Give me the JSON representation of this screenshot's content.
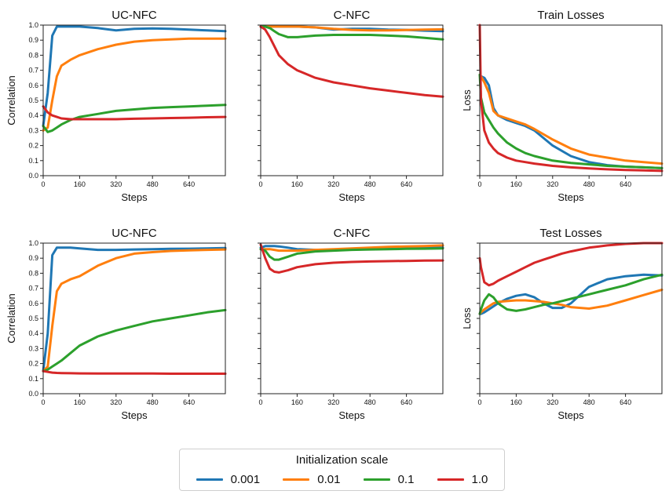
{
  "legend": {
    "title": "Initialization scale",
    "entries": [
      {
        "label": "0.001",
        "color": "#1f77b4"
      },
      {
        "label": "0.01",
        "color": "#ff7f0e"
      },
      {
        "label": "0.1",
        "color": "#2ca02c"
      },
      {
        "label": "1.0",
        "color": "#d62728"
      }
    ]
  },
  "chart_data": [
    {
      "type": "line",
      "title": "UC-NFC",
      "xlabel": "Steps",
      "ylabel": "Correlation",
      "xlim": [
        0,
        800
      ],
      "ylim": [
        0,
        1.0
      ],
      "xticks": [
        "0",
        "160",
        "320",
        "480",
        "640"
      ],
      "yticks": [
        "0.0",
        "0.1",
        "0.2",
        "0.3",
        "0.4",
        "0.5",
        "0.6",
        "0.7",
        "0.8",
        "0.9",
        "1.0"
      ],
      "x": [
        0,
        20,
        40,
        60,
        80,
        120,
        160,
        240,
        320,
        400,
        480,
        560,
        640,
        720,
        800
      ],
      "series": [
        {
          "name": "0.001",
          "values": [
            0.33,
            0.55,
            0.93,
            0.99,
            0.99,
            0.99,
            0.99,
            0.98,
            0.965,
            0.975,
            0.978,
            0.975,
            0.97,
            0.965,
            0.96
          ]
        },
        {
          "name": "0.01",
          "values": [
            0.3,
            0.32,
            0.5,
            0.66,
            0.73,
            0.77,
            0.8,
            0.84,
            0.87,
            0.89,
            0.9,
            0.905,
            0.91,
            0.91,
            0.91
          ]
        },
        {
          "name": "0.1",
          "values": [
            0.33,
            0.29,
            0.3,
            0.32,
            0.34,
            0.37,
            0.39,
            0.41,
            0.43,
            0.44,
            0.45,
            0.455,
            0.46,
            0.465,
            0.47
          ]
        },
        {
          "name": "1.0",
          "values": [
            0.46,
            0.42,
            0.4,
            0.39,
            0.38,
            0.375,
            0.375,
            0.375,
            0.375,
            0.378,
            0.38,
            0.383,
            0.385,
            0.388,
            0.39
          ]
        }
      ]
    },
    {
      "type": "line",
      "title": "C-NFC",
      "xlabel": "Steps",
      "ylabel": "",
      "xlim": [
        0,
        800
      ],
      "ylim": [
        0,
        1.0
      ],
      "xticks": [
        "0",
        "160",
        "320",
        "480",
        "640"
      ],
      "yticks": [],
      "x": [
        0,
        20,
        40,
        60,
        80,
        120,
        160,
        240,
        320,
        400,
        480,
        560,
        640,
        720,
        800
      ],
      "series": [
        {
          "name": "0.001",
          "values": [
            0.99,
            0.99,
            0.99,
            0.99,
            0.99,
            0.99,
            0.99,
            0.985,
            0.97,
            0.975,
            0.975,
            0.97,
            0.968,
            0.963,
            0.96
          ]
        },
        {
          "name": "0.01",
          "values": [
            0.99,
            0.99,
            0.99,
            0.99,
            0.99,
            0.99,
            0.99,
            0.985,
            0.975,
            0.968,
            0.965,
            0.965,
            0.967,
            0.97,
            0.972
          ]
        },
        {
          "name": "0.1",
          "values": [
            0.99,
            0.99,
            0.98,
            0.96,
            0.94,
            0.92,
            0.92,
            0.93,
            0.935,
            0.935,
            0.935,
            0.93,
            0.925,
            0.915,
            0.905
          ]
        },
        {
          "name": "1.0",
          "values": [
            0.99,
            0.97,
            0.92,
            0.86,
            0.8,
            0.74,
            0.7,
            0.65,
            0.62,
            0.6,
            0.58,
            0.565,
            0.55,
            0.535,
            0.525
          ]
        }
      ]
    },
    {
      "type": "line",
      "title": "Train Losses",
      "xlabel": "Steps",
      "ylabel": "Loss",
      "xlim": [
        0,
        800
      ],
      "ylim": [
        0,
        1.0
      ],
      "xticks": [
        "0",
        "160",
        "320",
        "480",
        "640"
      ],
      "yticks": [],
      "x": [
        0,
        5,
        20,
        40,
        60,
        80,
        120,
        160,
        200,
        240,
        320,
        400,
        480,
        560,
        640,
        720,
        800
      ],
      "series": [
        {
          "name": "0.001",
          "values": [
            0.67,
            0.66,
            0.65,
            0.6,
            0.45,
            0.4,
            0.37,
            0.35,
            0.33,
            0.3,
            0.2,
            0.13,
            0.09,
            0.07,
            0.06,
            0.055,
            0.05
          ]
        },
        {
          "name": "0.01",
          "values": [
            0.67,
            0.66,
            0.62,
            0.55,
            0.43,
            0.4,
            0.38,
            0.36,
            0.34,
            0.31,
            0.24,
            0.18,
            0.14,
            0.12,
            0.1,
            0.09,
            0.08
          ]
        },
        {
          "name": "0.1",
          "values": [
            0.67,
            0.52,
            0.42,
            0.37,
            0.32,
            0.28,
            0.22,
            0.18,
            0.15,
            0.13,
            0.1,
            0.085,
            0.075,
            0.065,
            0.06,
            0.055,
            0.05
          ]
        },
        {
          "name": "1.0",
          "values": [
            1.0,
            0.5,
            0.3,
            0.22,
            0.18,
            0.15,
            0.12,
            0.1,
            0.09,
            0.08,
            0.065,
            0.055,
            0.048,
            0.042,
            0.038,
            0.035,
            0.032
          ]
        }
      ]
    },
    {
      "type": "line",
      "title": "UC-NFC",
      "xlabel": "Steps",
      "ylabel": "Correlation",
      "xlim": [
        0,
        800
      ],
      "ylim": [
        0,
        1.0
      ],
      "xticks": [
        "0",
        "160",
        "320",
        "480",
        "640"
      ],
      "yticks": [
        "0.0",
        "0.1",
        "0.2",
        "0.3",
        "0.4",
        "0.5",
        "0.6",
        "0.7",
        "0.8",
        "0.9",
        "1.0"
      ],
      "x": [
        0,
        20,
        40,
        60,
        80,
        120,
        160,
        240,
        320,
        400,
        480,
        560,
        640,
        720,
        800
      ],
      "series": [
        {
          "name": "0.001",
          "values": [
            0.15,
            0.4,
            0.92,
            0.97,
            0.97,
            0.97,
            0.965,
            0.955,
            0.955,
            0.958,
            0.96,
            0.962,
            0.963,
            0.965,
            0.967
          ]
        },
        {
          "name": "0.01",
          "values": [
            0.15,
            0.18,
            0.45,
            0.68,
            0.73,
            0.76,
            0.78,
            0.85,
            0.9,
            0.93,
            0.94,
            0.948,
            0.952,
            0.955,
            0.958
          ]
        },
        {
          "name": "0.1",
          "values": [
            0.15,
            0.16,
            0.18,
            0.2,
            0.22,
            0.27,
            0.32,
            0.38,
            0.42,
            0.45,
            0.48,
            0.5,
            0.52,
            0.54,
            0.555
          ]
        },
        {
          "name": "1.0",
          "values": [
            0.15,
            0.145,
            0.14,
            0.138,
            0.137,
            0.136,
            0.135,
            0.134,
            0.134,
            0.134,
            0.134,
            0.133,
            0.133,
            0.133,
            0.133
          ]
        }
      ]
    },
    {
      "type": "line",
      "title": "C-NFC",
      "xlabel": "Steps",
      "ylabel": "",
      "xlim": [
        0,
        800
      ],
      "ylim": [
        0,
        1.0
      ],
      "xticks": [
        "0",
        "160",
        "320",
        "480",
        "640"
      ],
      "yticks": [],
      "x": [
        0,
        20,
        40,
        60,
        80,
        120,
        160,
        240,
        320,
        400,
        480,
        560,
        640,
        720,
        800
      ],
      "series": [
        {
          "name": "0.001",
          "values": [
            0.97,
            0.98,
            0.98,
            0.98,
            0.978,
            0.97,
            0.96,
            0.955,
            0.955,
            0.958,
            0.962,
            0.965,
            0.968,
            0.97,
            0.97
          ]
        },
        {
          "name": "0.01",
          "values": [
            0.96,
            0.96,
            0.96,
            0.955,
            0.95,
            0.95,
            0.95,
            0.955,
            0.96,
            0.965,
            0.97,
            0.975,
            0.978,
            0.98,
            0.985
          ]
        },
        {
          "name": "0.1",
          "values": [
            0.96,
            0.95,
            0.91,
            0.89,
            0.89,
            0.91,
            0.93,
            0.945,
            0.95,
            0.955,
            0.958,
            0.96,
            0.962,
            0.963,
            0.965
          ]
        },
        {
          "name": "1.0",
          "values": [
            0.99,
            0.9,
            0.83,
            0.81,
            0.805,
            0.82,
            0.84,
            0.86,
            0.87,
            0.875,
            0.878,
            0.88,
            0.882,
            0.884,
            0.885
          ]
        }
      ]
    },
    {
      "type": "line",
      "title": "Test Losses",
      "xlabel": "Steps",
      "ylabel": "Loss",
      "xlim": [
        0,
        800
      ],
      "ylim": [
        0,
        1.0
      ],
      "xticks": [
        "0",
        "160",
        "320",
        "480",
        "640"
      ],
      "yticks": [],
      "x": [
        0,
        5,
        20,
        40,
        60,
        80,
        120,
        160,
        200,
        240,
        280,
        320,
        360,
        400,
        480,
        560,
        640,
        720,
        800
      ],
      "series": [
        {
          "name": "0.001",
          "values": [
            0.53,
            0.53,
            0.54,
            0.56,
            0.58,
            0.6,
            0.63,
            0.65,
            0.66,
            0.64,
            0.6,
            0.57,
            0.57,
            0.6,
            0.71,
            0.76,
            0.78,
            0.79,
            0.785
          ]
        },
        {
          "name": "0.01",
          "values": [
            0.53,
            0.54,
            0.56,
            0.58,
            0.6,
            0.61,
            0.615,
            0.62,
            0.62,
            0.615,
            0.61,
            0.6,
            0.59,
            0.575,
            0.565,
            0.585,
            0.62,
            0.655,
            0.69
          ]
        },
        {
          "name": "0.1",
          "values": [
            0.53,
            0.56,
            0.62,
            0.66,
            0.64,
            0.6,
            0.56,
            0.55,
            0.56,
            0.575,
            0.59,
            0.6,
            0.615,
            0.63,
            0.66,
            0.69,
            0.72,
            0.76,
            0.79
          ]
        },
        {
          "name": "1.0",
          "values": [
            0.9,
            0.84,
            0.74,
            0.72,
            0.73,
            0.75,
            0.78,
            0.81,
            0.84,
            0.87,
            0.89,
            0.91,
            0.93,
            0.945,
            0.97,
            0.985,
            0.995,
            1.0,
            1.0
          ]
        }
      ]
    }
  ]
}
